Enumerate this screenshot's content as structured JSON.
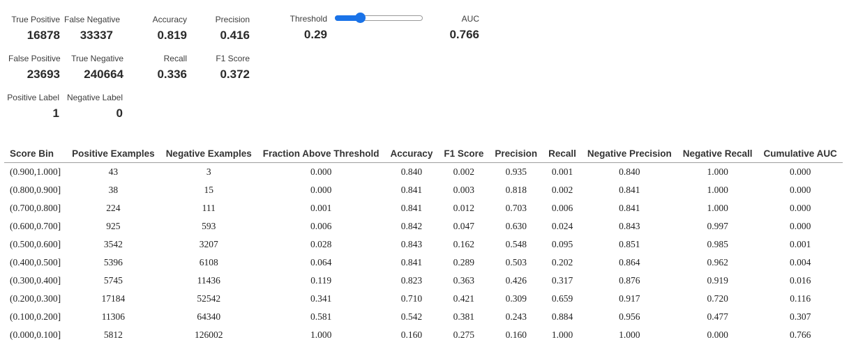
{
  "metrics": {
    "true_positive": {
      "label": "True Positive",
      "value": "16878"
    },
    "false_negative": {
      "label": "False Negative",
      "value": "33337"
    },
    "accuracy": {
      "label": "Accuracy",
      "value": "0.819"
    },
    "precision": {
      "label": "Precision",
      "value": "0.416"
    },
    "false_positive": {
      "label": "False Positive",
      "value": "23693"
    },
    "true_negative": {
      "label": "True Negative",
      "value": "240664"
    },
    "recall": {
      "label": "Recall",
      "value": "0.336"
    },
    "f1_score": {
      "label": "F1 Score",
      "value": "0.372"
    },
    "positive_label": {
      "label": "Positive Label",
      "value": "1"
    },
    "negative_label": {
      "label": "Negative Label",
      "value": "0"
    }
  },
  "threshold": {
    "label": "Threshold",
    "value": "0.29",
    "slider_fraction": 0.29,
    "accent_color": "#1a73e8"
  },
  "auc": {
    "label": "AUC",
    "value": "0.766"
  },
  "table": {
    "columns": [
      "Score Bin",
      "Positive Examples",
      "Negative Examples",
      "Fraction Above Threshold",
      "Accuracy",
      "F1 Score",
      "Precision",
      "Recall",
      "Negative Precision",
      "Negative Recall",
      "Cumulative AUC"
    ],
    "rows": [
      [
        "(0.900,1.000]",
        "43",
        "3",
        "0.000",
        "0.840",
        "0.002",
        "0.935",
        "0.001",
        "0.840",
        "1.000",
        "0.000"
      ],
      [
        "(0.800,0.900]",
        "38",
        "15",
        "0.000",
        "0.841",
        "0.003",
        "0.818",
        "0.002",
        "0.841",
        "1.000",
        "0.000"
      ],
      [
        "(0.700,0.800]",
        "224",
        "111",
        "0.001",
        "0.841",
        "0.012",
        "0.703",
        "0.006",
        "0.841",
        "1.000",
        "0.000"
      ],
      [
        "(0.600,0.700]",
        "925",
        "593",
        "0.006",
        "0.842",
        "0.047",
        "0.630",
        "0.024",
        "0.843",
        "0.997",
        "0.000"
      ],
      [
        "(0.500,0.600]",
        "3542",
        "3207",
        "0.028",
        "0.843",
        "0.162",
        "0.548",
        "0.095",
        "0.851",
        "0.985",
        "0.001"
      ],
      [
        "(0.400,0.500]",
        "5396",
        "6108",
        "0.064",
        "0.841",
        "0.289",
        "0.503",
        "0.202",
        "0.864",
        "0.962",
        "0.004"
      ],
      [
        "(0.300,0.400]",
        "5745",
        "11436",
        "0.119",
        "0.823",
        "0.363",
        "0.426",
        "0.317",
        "0.876",
        "0.919",
        "0.016"
      ],
      [
        "(0.200,0.300]",
        "17184",
        "52542",
        "0.341",
        "0.710",
        "0.421",
        "0.309",
        "0.659",
        "0.917",
        "0.720",
        "0.116"
      ],
      [
        "(0.100,0.200]",
        "11306",
        "64340",
        "0.581",
        "0.542",
        "0.381",
        "0.243",
        "0.884",
        "0.956",
        "0.477",
        "0.307"
      ],
      [
        "(0.000,0.100]",
        "5812",
        "126002",
        "1.000",
        "0.160",
        "0.275",
        "0.160",
        "1.000",
        "1.000",
        "0.000",
        "0.766"
      ]
    ]
  }
}
